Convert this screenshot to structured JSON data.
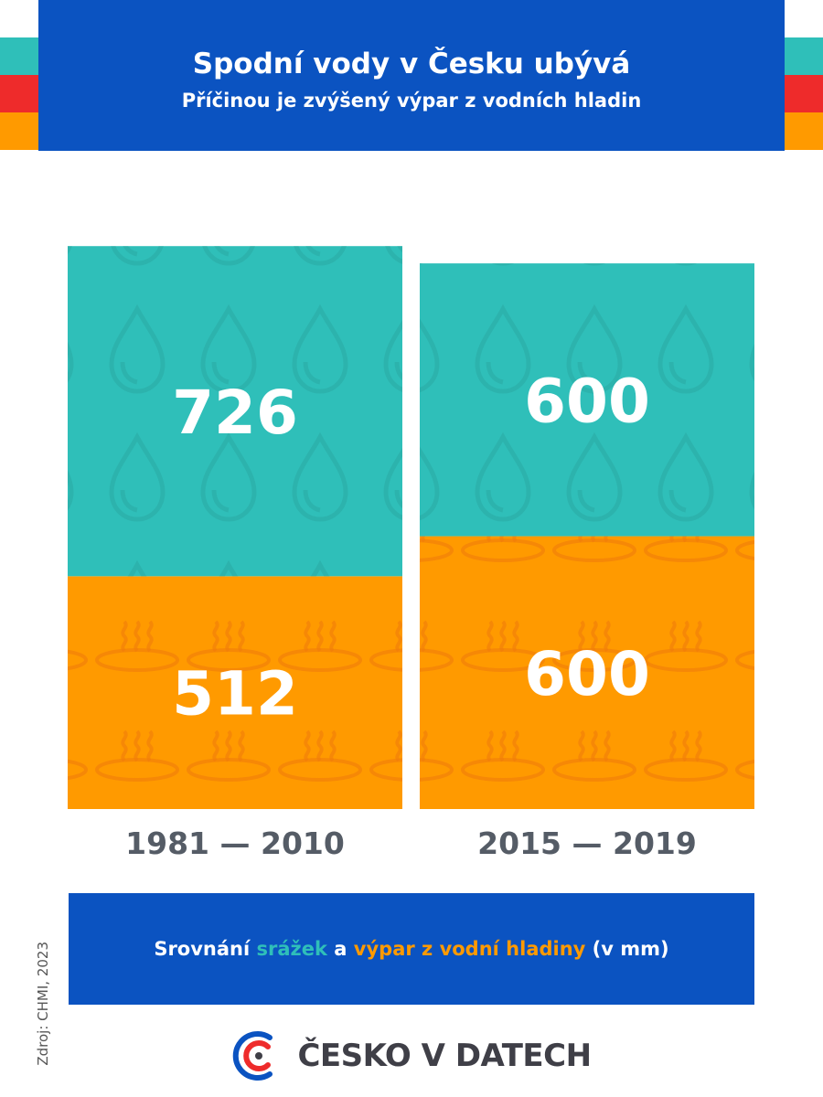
{
  "header": {
    "title": "Spodní vody v Česku ubývá",
    "subtitle": "Příčinou je zvýšený výpar z vodních hladin"
  },
  "colors": {
    "header_blue": "#0b53c1",
    "teal": "#2fbfb9",
    "orange": "#ff9a00",
    "red": "#ee2b2b",
    "label_gray": "#555c66"
  },
  "chart_data": {
    "type": "bar",
    "categories": [
      "1981 — 2010",
      "2015 — 2019"
    ],
    "series": [
      {
        "name": "srážek",
        "values": [
          726,
          600
        ],
        "color": "#2fbfb9",
        "icon": "water-drop-icon"
      },
      {
        "name": "výpar z vodní hladiny",
        "values": [
          512,
          600
        ],
        "color": "#ff9a00",
        "icon": "evaporation-icon"
      }
    ],
    "stacked": true,
    "unit": "mm",
    "grid": false,
    "legend_placement": "bottom"
  },
  "legend": {
    "prefix": "Srovnání ",
    "series1": "srážek",
    "conjunction": " a ",
    "series2": "výpar z vodní hladiny",
    "suffix": " (v mm)"
  },
  "source": "Zdroj: CHMI, 2023",
  "brand": {
    "name": "ČESKO V DATECH",
    "icon": "cesko-v-datech-logo-icon"
  }
}
